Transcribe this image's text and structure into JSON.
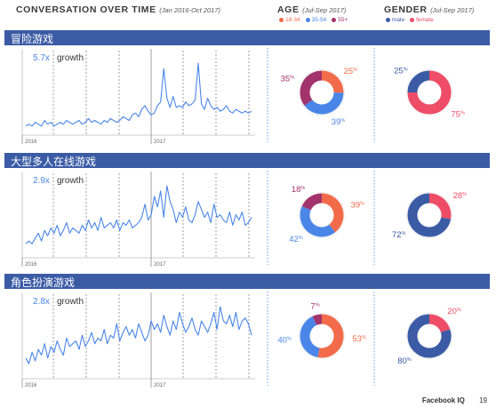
{
  "header": {
    "title": "CONVERSATION OVER TIME",
    "subtitle": "(Jan 2016-Oct 2017)",
    "age_title": "AGE",
    "age_subtitle": "(Jul-Sep 2017)",
    "gender_title": "GENDER",
    "gender_subtitle": "(Jul-Sep 2017)",
    "age_legend": [
      {
        "label": "18-34",
        "color": "#f26b4a"
      },
      {
        "label": "35-54",
        "color": "#4a86e8"
      },
      {
        "label": "55+",
        "color": "#a2336b"
      }
    ],
    "gender_legend": [
      {
        "label": "male",
        "color": "#3b5ba5"
      },
      {
        "label": "female",
        "color": "#ee4c67"
      }
    ]
  },
  "colors": {
    "band": "#3b5ba5",
    "line": "#4a86e8",
    "age_18_34": "#f26b4a",
    "age_35_54": "#4a86e8",
    "age_55": "#a2336b",
    "male": "#3b5ba5",
    "female": "#ee4c67",
    "divider": "#4a86e8"
  },
  "footer": {
    "brand": "Facebook IQ",
    "page": "19"
  },
  "chart_data": [
    {
      "type": "line",
      "category": "冒险游戏",
      "growth_value": "5.7x",
      "growth_label": "growth",
      "year_labels": [
        "2016",
        "2017"
      ],
      "values": [
        3,
        4,
        3,
        5,
        4,
        3,
        6,
        4,
        5,
        3,
        4,
        5,
        4,
        6,
        5,
        4,
        5,
        6,
        4,
        5,
        7,
        5,
        6,
        5,
        4,
        6,
        5,
        7,
        6,
        5,
        6,
        8,
        7,
        6,
        9,
        10,
        8,
        12,
        14,
        11,
        9,
        10,
        14,
        16,
        34,
        18,
        13,
        19,
        13,
        14,
        13,
        16,
        14,
        15,
        17,
        37,
        15,
        12,
        18,
        14,
        12,
        13,
        11,
        12,
        14,
        11,
        10,
        12,
        11,
        10,
        11,
        10,
        11
      ]
    },
    {
      "type": "donut",
      "title": "AGE",
      "labels": [
        "18-34",
        "35-54",
        "55+"
      ],
      "values": [
        25,
        39,
        35
      ]
    },
    {
      "type": "donut",
      "title": "GENDER",
      "labels": [
        "female",
        "male"
      ],
      "values": [
        75,
        25
      ]
    },
    {
      "type": "line",
      "category": "大型多人在线游戏",
      "growth_value": "2.9x",
      "growth_label": "growth",
      "year_labels": [
        "2016",
        "2017"
      ],
      "values": [
        4,
        5,
        4,
        6,
        8,
        5,
        9,
        7,
        10,
        8,
        11,
        7,
        9,
        12,
        8,
        10,
        9,
        8,
        11,
        9,
        13,
        10,
        12,
        9,
        14,
        10,
        11,
        12,
        10,
        13,
        9,
        12,
        11,
        13,
        10,
        11,
        12,
        14,
        19,
        13,
        15,
        22,
        18,
        24,
        14,
        26,
        20,
        17,
        12,
        16,
        14,
        18,
        13,
        12,
        15,
        20,
        17,
        14,
        16,
        12,
        19,
        14,
        15,
        13,
        12,
        16,
        11,
        15,
        13,
        16,
        11,
        12,
        14
      ]
    },
    {
      "type": "donut",
      "title": "AGE",
      "labels": [
        "18-34",
        "35-54",
        "55+"
      ],
      "values": [
        39,
        42,
        18
      ]
    },
    {
      "type": "donut",
      "title": "GENDER",
      "labels": [
        "female",
        "male"
      ],
      "values": [
        28,
        72
      ]
    },
    {
      "type": "line",
      "category": "角色扮演游戏",
      "growth_value": "2.8x",
      "growth_label": "growth",
      "year_labels": [
        "2016",
        "2017"
      ],
      "values": [
        6,
        4,
        8,
        5,
        9,
        7,
        11,
        6,
        10,
        8,
        12,
        9,
        7,
        13,
        10,
        11,
        12,
        9,
        14,
        10,
        12,
        15,
        11,
        13,
        12,
        16,
        11,
        14,
        13,
        18,
        12,
        15,
        17,
        14,
        16,
        13,
        18,
        15,
        12,
        14,
        19,
        16,
        18,
        15,
        21,
        17,
        14,
        19,
        16,
        22,
        18,
        15,
        17,
        20,
        16,
        14,
        19,
        17,
        15,
        18,
        22,
        16,
        24,
        19,
        18,
        21,
        17,
        22,
        16,
        19,
        20,
        18,
        14
      ]
    },
    {
      "type": "donut",
      "title": "AGE",
      "labels": [
        "18-34",
        "35-54",
        "55+"
      ],
      "values": [
        53,
        40,
        7
      ]
    },
    {
      "type": "donut",
      "title": "GENDER",
      "labels": [
        "female",
        "male"
      ],
      "values": [
        20,
        80
      ]
    }
  ]
}
